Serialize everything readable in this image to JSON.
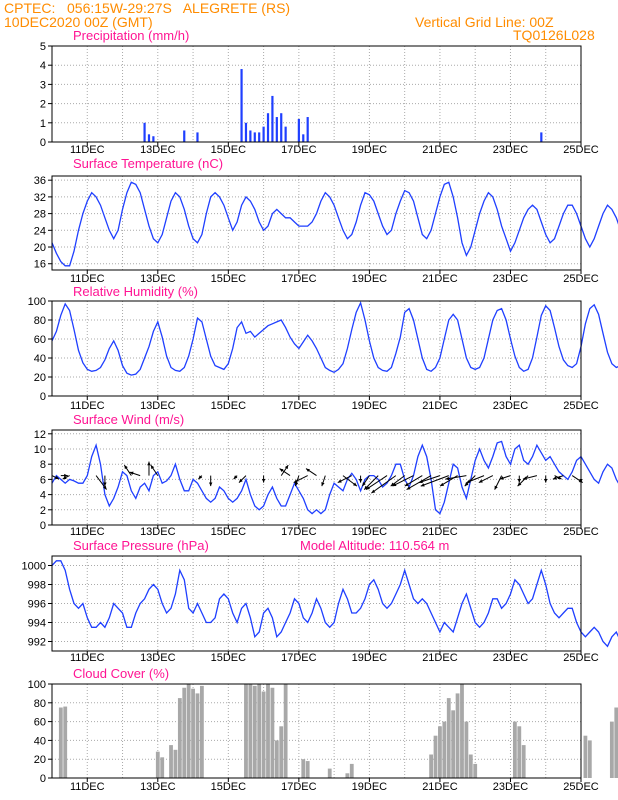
{
  "header": {
    "line1": "CPTEC:   056:15W-29:27S   ALEGRETE (RS)",
    "line2": "10DEC2020 00Z (GMT)",
    "grid_note": "Vertical Grid Line: 00Z",
    "run_code": "TQ0126L028",
    "model_altitude": "Model Altitude: 110.564 m"
  },
  "colors": {
    "header": "#ff8c00",
    "panel_title": "#ff1493",
    "series": "#1f3fff",
    "cloud": "#a8a8a8",
    "wind_arrow": "#000000",
    "grid": "#aaaaaa"
  },
  "x_ticks": [
    "11DEC",
    "13DEC",
    "15DEC",
    "17DEC",
    "19DEC",
    "21DEC",
    "23DEC",
    "25DEC"
  ],
  "chart_data": [
    {
      "type": "bar",
      "title": "Precipitation (mm/h)",
      "ylim": [
        0,
        5
      ],
      "yticks": [
        0,
        1,
        2,
        3,
        4,
        5
      ],
      "x_start_day": 10.0,
      "x_step_days": 0.125,
      "values": [
        0,
        0,
        0,
        0,
        0,
        0,
        0,
        0,
        0,
        0,
        0,
        0,
        0,
        0,
        0,
        0,
        0,
        0,
        0,
        0,
        0,
        1.0,
        0.4,
        0.3,
        0,
        0,
        0,
        0,
        0,
        0,
        0.6,
        0,
        0,
        0.5,
        0,
        0,
        0,
        0,
        0,
        0,
        0,
        0,
        0,
        3.8,
        1.0,
        0.6,
        0.5,
        0.5,
        0.8,
        1.5,
        2.4,
        1.3,
        1.5,
        0.8,
        0,
        0,
        1.2,
        0.4,
        1.3,
        0,
        0,
        0,
        0,
        0,
        0,
        0,
        0,
        0,
        0,
        0,
        0,
        0,
        0,
        0,
        0,
        0,
        0,
        0,
        0,
        0,
        0,
        0,
        0,
        0,
        0,
        0,
        0,
        0,
        0,
        0,
        0,
        0,
        0,
        0,
        0,
        0,
        0,
        0,
        0,
        0,
        0,
        0,
        0,
        0,
        0,
        0,
        0,
        0,
        0,
        0,
        0,
        0.5,
        0,
        0,
        0,
        0,
        0,
        0,
        0,
        0,
        0,
        0,
        0,
        0,
        0,
        0,
        0,
        0,
        0,
        0,
        0,
        0,
        0,
        0,
        0,
        0,
        0,
        0,
        0,
        0,
        0,
        0,
        0,
        0
      ]
    },
    {
      "type": "line",
      "title": "Surface Temperature (nC)",
      "ylim": [
        14.5,
        37
      ],
      "yticks": [
        16,
        20,
        24,
        28,
        32,
        36
      ],
      "x_start_day": 10.0,
      "x_step_days": 0.125,
      "values": [
        21,
        18.5,
        16.5,
        15.5,
        15.5,
        19,
        24,
        28,
        31,
        33,
        32,
        30,
        27,
        24,
        22,
        24,
        29,
        33,
        35.5,
        35,
        33,
        29,
        25,
        22,
        21,
        23,
        27,
        31,
        33,
        32,
        29,
        25,
        22,
        21,
        23,
        28,
        32,
        33,
        32,
        30,
        27,
        24,
        26,
        30,
        32,
        31,
        29,
        26,
        24,
        25,
        28,
        29,
        28,
        27,
        27,
        26,
        25,
        25,
        25,
        26,
        28,
        31,
        33,
        32,
        30,
        27,
        24,
        22,
        23,
        26,
        30,
        33,
        32.5,
        31,
        28,
        25,
        23,
        24,
        28,
        31,
        33.5,
        33,
        31,
        27,
        23,
        22,
        24,
        28,
        32,
        35,
        35.5,
        32,
        27,
        21,
        18,
        20,
        24,
        28,
        31,
        33,
        32,
        29,
        25,
        22,
        19,
        21,
        24,
        27,
        29,
        30,
        29,
        26,
        23,
        21,
        22,
        25,
        28,
        30,
        30,
        28,
        25,
        22,
        20,
        22,
        25,
        28,
        30,
        29,
        27,
        24,
        21,
        20,
        22,
        26,
        30,
        32,
        31,
        29,
        26,
        23,
        21,
        22,
        26,
        30,
        32,
        30
      ]
    },
    {
      "type": "line",
      "title": "Relative Humidity (%)",
      "ylim": [
        0,
        100
      ],
      "yticks": [
        0,
        20,
        40,
        60,
        80,
        100
      ],
      "x_start_day": 10.0,
      "x_step_days": 0.125,
      "values": [
        58,
        68,
        85,
        97,
        90,
        70,
        48,
        35,
        28,
        26,
        27,
        30,
        38,
        50,
        58,
        48,
        32,
        24,
        22,
        23,
        28,
        40,
        52,
        68,
        78,
        62,
        42,
        30,
        27,
        26,
        30,
        42,
        60,
        82,
        78,
        60,
        42,
        32,
        30,
        28,
        34,
        50,
        72,
        78,
        66,
        68,
        62,
        66,
        70,
        74,
        76,
        78,
        80,
        72,
        62,
        55,
        50,
        57,
        64,
        58,
        50,
        40,
        30,
        27,
        25,
        28,
        34,
        50,
        70,
        88,
        98,
        80,
        58,
        40,
        30,
        27,
        26,
        30,
        45,
        62,
        88,
        92,
        80,
        60,
        40,
        28,
        26,
        30,
        40,
        60,
        80,
        86,
        80,
        60,
        40,
        30,
        28,
        30,
        40,
        60,
        80,
        90,
        92,
        80,
        60,
        42,
        30,
        26,
        28,
        40,
        62,
        85,
        95,
        90,
        72,
        52,
        38,
        32,
        30,
        34,
        52,
        76,
        92,
        96,
        86,
        66,
        46,
        34,
        30,
        32,
        46,
        72,
        92,
        98,
        90,
        70,
        50,
        38,
        30,
        27,
        26,
        28,
        34
      ]
    },
    {
      "type": "line",
      "title": "Surface Wind (m/s)",
      "ylim": [
        0,
        12.5
      ],
      "yticks": [
        0,
        2,
        4,
        6,
        8,
        10,
        12
      ],
      "x_start_day": 10.0,
      "x_step_days": 0.125,
      "values": [
        5.5,
        6.5,
        6,
        5.5,
        6,
        5.8,
        5.5,
        5.5,
        6.5,
        9,
        10.5,
        8,
        4,
        2.5,
        3.5,
        5,
        7,
        6.5,
        4.5,
        3.5,
        5,
        5.5,
        4.5,
        6.5,
        7,
        5.5,
        5.8,
        6.5,
        8,
        6,
        4.5,
        4.5,
        6,
        5.5,
        4.5,
        3.5,
        3,
        3.5,
        5,
        4.5,
        3.5,
        3,
        3.5,
        4.5,
        6,
        4,
        2.5,
        2,
        2.5,
        4,
        5,
        3.5,
        2.5,
        2.5,
        4,
        5.5,
        4.5,
        3.5,
        2,
        1.5,
        2,
        1.5,
        2,
        4,
        5.5,
        5,
        4.5,
        6,
        6.8,
        6,
        4.5,
        6,
        6.5,
        6.5,
        6,
        5,
        5.5,
        6.5,
        8,
        8,
        6,
        5,
        6.5,
        9,
        10.5,
        9,
        6,
        2,
        1.5,
        3,
        5.5,
        8,
        7.5,
        5,
        3.5,
        6,
        8.5,
        10,
        8.5,
        7.5,
        9,
        10.8,
        11,
        9,
        8,
        10,
        10.5,
        8.5,
        8,
        9,
        10.5,
        9.5,
        8.5,
        9,
        8,
        7,
        6.5,
        6,
        7,
        8.5,
        9,
        8,
        7,
        6,
        5.5,
        7,
        8,
        7.5,
        6,
        5,
        4,
        5.5,
        6.5,
        6,
        4.5,
        4,
        5,
        7,
        8,
        8.5,
        8
      ],
      "arrows_x_day": [
        10.0,
        10.25,
        10.5,
        11.25,
        11.5,
        12.25,
        12.5,
        12.75,
        13.0,
        14.25,
        14.5,
        15.25,
        15.5,
        16.0,
        16.5,
        16.75,
        17.0,
        17.25,
        17.5,
        17.75,
        18.25,
        18.5,
        18.75,
        19.0,
        19.25,
        19.5,
        19.75,
        20.0,
        20.25,
        20.5,
        20.75,
        21.0,
        21.25,
        21.5,
        21.75,
        22.0,
        22.25,
        22.5,
        22.75,
        23.0,
        23.25,
        23.5,
        23.75,
        24.0,
        24.25,
        24.5,
        24.75,
        25.0
      ],
      "arrows_u": [
        2,
        2,
        -2,
        3,
        0,
        -2,
        -3,
        0,
        -2,
        -1,
        0,
        -1,
        -2,
        0,
        2,
        -3,
        -1,
        -4,
        -3,
        -1,
        4,
        -4,
        0,
        -2,
        -4,
        -6,
        -7,
        -4,
        -6,
        -5,
        -7,
        -6,
        -8,
        -5,
        -6,
        -3,
        -5,
        -4,
        -2,
        -3,
        0,
        -3,
        -4,
        0,
        2,
        -3,
        3,
        0
      ],
      "arrows_v": [
        -1,
        0,
        -1,
        -4,
        -3,
        3,
        1,
        4,
        3,
        -1,
        -3,
        -1,
        -2,
        -2,
        3,
        2,
        -3,
        -2,
        2,
        -3,
        -3,
        -2,
        -2,
        -3,
        -4,
        -4,
        -5,
        -3,
        -3,
        -3,
        -4,
        -2,
        -3,
        -3,
        -1,
        -3,
        -2,
        -2,
        -4,
        -1,
        -2,
        -3,
        -1,
        -2,
        -1,
        -1,
        -2,
        -2
      ]
    },
    {
      "type": "line",
      "title": "Surface Pressure (hPa)",
      "ylim": [
        991,
        1001
      ],
      "yticks": [
        992,
        994,
        996,
        998,
        1000
      ],
      "x_start_day": 10.0,
      "x_step_days": 0.125,
      "values": [
        1000,
        1000.5,
        1000.5,
        999.5,
        997.5,
        996,
        995.5,
        996,
        994.5,
        993.5,
        993.5,
        994,
        993.5,
        994.5,
        996,
        995.5,
        995,
        993.5,
        993.5,
        995,
        996,
        996.5,
        997.5,
        998,
        997.5,
        996,
        995,
        995.5,
        997,
        999.5,
        998.5,
        995.5,
        995,
        996,
        995,
        994,
        994,
        994.5,
        996.5,
        997,
        996.5,
        995,
        994,
        995.5,
        996,
        994.5,
        992.5,
        993,
        995,
        995.5,
        994.5,
        992.5,
        993,
        994,
        995,
        996.5,
        996,
        994.5,
        994,
        995,
        996.5,
        995.5,
        994,
        993.5,
        994,
        996,
        997.5,
        996.5,
        995,
        995,
        995.5,
        996.5,
        998,
        998.5,
        997.5,
        996,
        995.5,
        996,
        997,
        998,
        999.5,
        998,
        996.5,
        996,
        996.5,
        996,
        995,
        994,
        993,
        994,
        993.5,
        993,
        994.5,
        996,
        997,
        995.5,
        994,
        993.5,
        994,
        995,
        996.5,
        996.5,
        995.5,
        996,
        997,
        998.5,
        998,
        997,
        996,
        996.5,
        998,
        999.5,
        998,
        996,
        995,
        994.5,
        995,
        995.5,
        995.5,
        994,
        993,
        992.5,
        993,
        993.5,
        993,
        992,
        991.5,
        992.5,
        993,
        992,
        993,
        994.5,
        994,
        993,
        992.5,
        994,
        996,
        996.5,
        995.5,
        994.5,
        995,
        996.5
      ]
    },
    {
      "type": "bar",
      "title": "Cloud Cover (%)",
      "ylim": [
        0,
        100
      ],
      "yticks": [
        0,
        20,
        40,
        60,
        80,
        100
      ],
      "x_start_day": 10.0,
      "x_step_days": 0.125,
      "values": [
        0,
        0,
        75,
        76,
        0,
        0,
        0,
        0,
        0,
        0,
        0,
        0,
        0,
        0,
        0,
        0,
        0,
        0,
        0,
        0,
        0,
        0,
        0,
        0,
        28,
        22,
        0,
        35,
        30,
        85,
        96,
        100,
        95,
        90,
        98,
        0,
        0,
        0,
        0,
        0,
        0,
        0,
        0,
        0,
        100,
        100,
        98,
        100,
        92,
        100,
        96,
        40,
        55,
        100,
        0,
        0,
        0,
        20,
        18,
        0,
        0,
        0,
        0,
        10,
        0,
        0,
        0,
        5,
        15,
        0,
        0,
        0,
        0,
        0,
        0,
        0,
        0,
        0,
        0,
        0,
        0,
        0,
        0,
        0,
        0,
        0,
        25,
        45,
        55,
        60,
        85,
        72,
        90,
        100,
        60,
        25,
        15,
        0,
        0,
        0,
        0,
        0,
        0,
        0,
        0,
        60,
        55,
        35,
        0,
        0,
        0,
        0,
        0,
        0,
        0,
        0,
        0,
        0,
        0,
        0,
        0,
        45,
        40,
        0,
        0,
        0,
        0,
        60,
        75,
        80,
        85,
        80,
        0,
        0,
        0,
        0,
        0,
        0,
        0,
        0,
        0,
        70,
        60,
        0,
        0,
        0,
        0,
        0,
        0,
        0,
        0,
        0,
        0,
        0
      ]
    }
  ],
  "panels": [
    {
      "title": "Precipitation (mm/h)"
    },
    {
      "title": "Surface Temperature (nC)"
    },
    {
      "title": "Relative Humidity (%)"
    },
    {
      "title": "Surface Wind (m/s)"
    },
    {
      "title": "Surface Pressure (hPa)"
    },
    {
      "title": "Cloud Cover (%)"
    }
  ]
}
